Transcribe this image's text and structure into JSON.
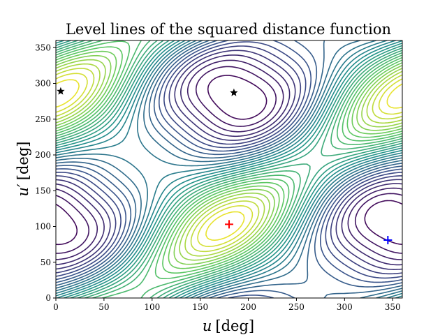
{
  "chart_data": {
    "type": "contour",
    "title": "Level lines of the squared distance function",
    "xlabel": {
      "symbol": "u",
      "unit": "[deg]"
    },
    "ylabel": {
      "symbol": "u′",
      "unit": "[deg]"
    },
    "xlim": [
      0,
      360
    ],
    "ylim": [
      0,
      360
    ],
    "x_ticks": [
      0,
      50,
      100,
      150,
      200,
      250,
      300,
      350
    ],
    "y_ticks": [
      0,
      50,
      100,
      150,
      200,
      250,
      300,
      350
    ],
    "grid": false,
    "colormap": [
      "#440154",
      "#3b528b",
      "#21918c",
      "#5ec962",
      "#fde725"
    ],
    "contour_levels": 30,
    "markers": [
      {
        "type": "plus",
        "x": 180,
        "y": 103,
        "color": "#ff0000"
      },
      {
        "type": "plus",
        "x": 345,
        "y": 81,
        "color": "#0000ff"
      },
      {
        "type": "star",
        "x": 5,
        "y": 289,
        "color": "#000000"
      },
      {
        "type": "star",
        "x": 185,
        "y": 287,
        "color": "#000000"
      }
    ]
  }
}
